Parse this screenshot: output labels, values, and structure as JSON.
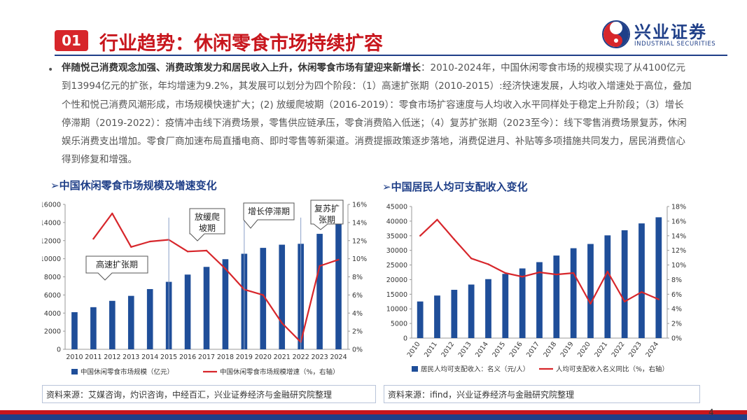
{
  "header": {
    "badge": "01",
    "title": "行业趋势：休闲零食市场持续扩容",
    "logo_cn": "兴业证券",
    "logo_en": "INDUSTRIAL SECURITIES"
  },
  "paragraph": {
    "bold": "伴随悦己消费观念加强、消费政策发力和居民收入上升，休闲零食市场有望迎来新增长",
    "rest": "：2010-2024年，中国休闲零食市场的规模实现了从4100亿元到13994亿元的扩张，年均增速为9.2%，其发展可以划分为四个阶段：（1）高速扩张期（2010-2015）:经济快速发展，人均收入增速处于高位，叠加个性和悦己消费风潮形成，市场规模快速扩大；(2) 放缓爬坡期（2016-2019）：零食市场扩容速度与人均收入水平同样处于稳定上升阶段；（3）增长停滞期（2019-2022）：疫情冲击线下消费场景，零售供应链承压，零食消费陷入低迷；（4）复苏扩张期（2023至今）：线下零售消费场景复苏，休闲娱乐消费支出增加。零食厂商加速布局直播电商、即时零售等新渠道。消费提振政策逐步落地，消费促进月、补贴等多项措施共同发力，居民消费信心得到修复和增强。"
  },
  "left_chart_title": "➢中国休闲零食市场规模及增速变化",
  "right_chart_title": "➢中国居民人均可支配收入变化",
  "left_source": "资料来源：艾媒咨询，灼识咨询，中经百汇，兴业证券经济与金融研究院整理",
  "right_source": "资料来源：ifind，兴业证券经济与金融研究院整理",
  "page_number": "4",
  "colors": {
    "bar": "#1f4e99",
    "line": "#d7262b",
    "title": "#c8161d",
    "navy": "#1f3f88"
  },
  "chart_data": [
    {
      "type": "bar",
      "categories": [
        "2010",
        "2011",
        "2012",
        "2013",
        "2014",
        "2015",
        "2016",
        "2017",
        "2018",
        "2019",
        "2020",
        "2021",
        "2022",
        "2023",
        "2024"
      ],
      "series": [
        {
          "name": "中国休闲零食市场规模（亿元）",
          "type": "bar",
          "axis": "left",
          "values": [
            4100,
            4650,
            5350,
            5900,
            6650,
            7450,
            8250,
            9100,
            9950,
            10550,
            11200,
            11550,
            11650,
            12750,
            13994
          ]
        },
        {
          "name": "中国休闲零食市场规模增速（%，右轴）",
          "type": "line",
          "axis": "right",
          "values": [
            null,
            12.2,
            15.0,
            11.3,
            11.9,
            12.1,
            10.8,
            10.9,
            8.9,
            6.6,
            6.0,
            2.9,
            0.8,
            9.2,
            9.9
          ]
        }
      ],
      "yleft": {
        "min": 0,
        "max": 16000,
        "step": 2000
      },
      "yright": {
        "min": 0,
        "max": 16,
        "step": 2,
        "unit": "%"
      },
      "annotations": [
        {
          "text": "高速扩张期",
          "period": "2010-2015"
        },
        {
          "text": "放缓爬坡期",
          "period": "2016-2019"
        },
        {
          "text": "增长停滞期",
          "period": "2019-2022"
        },
        {
          "text": "复苏扩张期",
          "period": "2023-2024"
        }
      ],
      "legend": "bottom"
    },
    {
      "type": "bar",
      "categories": [
        "2010",
        "2011",
        "2012",
        "2013",
        "2014",
        "2015",
        "2016",
        "2017",
        "2018",
        "2019",
        "2020",
        "2021",
        "2022",
        "2023",
        "2024"
      ],
      "series": [
        {
          "name": "居民人均可支配收入：名义（元/人）",
          "type": "bar",
          "axis": "left",
          "values": [
            12520,
            14551,
            16510,
            18311,
            20167,
            21966,
            23821,
            25974,
            28228,
            30733,
            32189,
            35128,
            36883,
            39218,
            41314
          ]
        },
        {
          "name": "人均可支配收入名义同比（%，右轴）",
          "type": "line",
          "axis": "right",
          "values": [
            14.0,
            16.2,
            13.5,
            10.9,
            10.1,
            8.9,
            8.4,
            9.0,
            8.7,
            8.9,
            4.7,
            9.1,
            5.0,
            6.3,
            5.3
          ]
        }
      ],
      "yleft": {
        "min": 0,
        "max": 45000,
        "step": 5000
      },
      "yright": {
        "min": 0,
        "max": 18,
        "step": 2,
        "unit": "%"
      },
      "legend": "bottom"
    }
  ]
}
